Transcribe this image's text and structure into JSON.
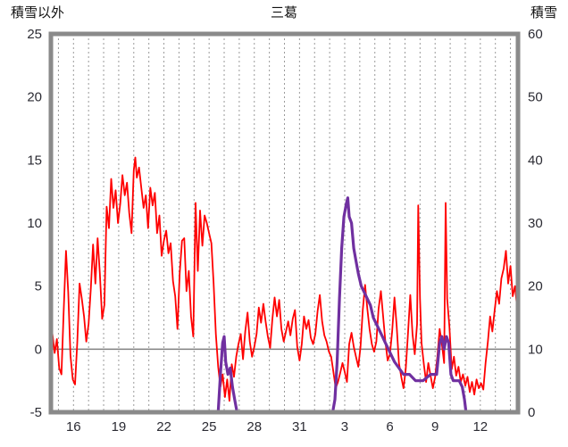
{
  "chart_data": {
    "type": "line",
    "title": "三葛",
    "ylabel_left": "積雪以外",
    "ylabel_right": "積雪",
    "x_domain": [
      14.5,
      45.5
    ],
    "x_ticks": [
      {
        "pos": 16,
        "label": "16"
      },
      {
        "pos": 19,
        "label": "19"
      },
      {
        "pos": 22,
        "label": "22"
      },
      {
        "pos": 25,
        "label": "25"
      },
      {
        "pos": 28,
        "label": "28"
      },
      {
        "pos": 31,
        "label": "31"
      },
      {
        "pos": 34,
        "label": "3"
      },
      {
        "pos": 37,
        "label": "6"
      },
      {
        "pos": 40,
        "label": "9"
      },
      {
        "pos": 43,
        "label": "12"
      }
    ],
    "grid": {
      "vertical_every_day": true,
      "horizontal": false
    },
    "left_axis": {
      "min": -5,
      "max": 25,
      "ticks": [
        25,
        20,
        15,
        10,
        5,
        0,
        -5
      ]
    },
    "right_axis": {
      "min": 0,
      "max": 60,
      "ticks": [
        60,
        50,
        40,
        30,
        20,
        10,
        0
      ]
    },
    "zero_line": 0,
    "colors": {
      "frame": "#8a8a8a",
      "grid": "#9a9a9a",
      "zero_line": "#808080",
      "temperature": "#ff0000",
      "snow": "#7030a0",
      "plot_background": "#ffffff"
    },
    "series": [
      {
        "name": "積雪以外",
        "data_name": "temperature-line",
        "axis": "left",
        "color": "#ff0000",
        "width": 1.8,
        "points": [
          [
            14.6,
            1.2
          ],
          [
            14.75,
            -0.3
          ],
          [
            14.9,
            0.8
          ],
          [
            15.05,
            -1.5
          ],
          [
            15.2,
            -2.0
          ],
          [
            15.35,
            3.0
          ],
          [
            15.5,
            7.8
          ],
          [
            15.65,
            4.5
          ],
          [
            15.8,
            -0.5
          ],
          [
            15.95,
            -2.4
          ],
          [
            16.1,
            -2.8
          ],
          [
            16.25,
            0.5
          ],
          [
            16.4,
            5.2
          ],
          [
            16.55,
            4.0
          ],
          [
            16.7,
            2.6
          ],
          [
            16.85,
            0.6
          ],
          [
            17.0,
            2.0
          ],
          [
            17.15,
            4.8
          ],
          [
            17.3,
            8.3
          ],
          [
            17.45,
            5.2
          ],
          [
            17.6,
            8.8
          ],
          [
            17.75,
            6.0
          ],
          [
            17.9,
            2.4
          ],
          [
            18.05,
            3.5
          ],
          [
            18.2,
            11.3
          ],
          [
            18.35,
            9.6
          ],
          [
            18.5,
            13.5
          ],
          [
            18.65,
            11.2
          ],
          [
            18.8,
            12.6
          ],
          [
            18.95,
            10.0
          ],
          [
            19.1,
            11.5
          ],
          [
            19.25,
            13.8
          ],
          [
            19.4,
            12.2
          ],
          [
            19.55,
            13.2
          ],
          [
            19.7,
            10.8
          ],
          [
            19.85,
            9.2
          ],
          [
            20.0,
            14.2
          ],
          [
            20.1,
            15.2
          ],
          [
            20.2,
            13.6
          ],
          [
            20.35,
            14.4
          ],
          [
            20.5,
            12.8
          ],
          [
            20.65,
            11.2
          ],
          [
            20.8,
            12.2
          ],
          [
            20.95,
            9.6
          ],
          [
            21.1,
            12.8
          ],
          [
            21.25,
            11.4
          ],
          [
            21.4,
            12.4
          ],
          [
            21.55,
            9.2
          ],
          [
            21.7,
            10.6
          ],
          [
            21.85,
            7.4
          ],
          [
            22.0,
            8.6
          ],
          [
            22.15,
            9.4
          ],
          [
            22.3,
            7.6
          ],
          [
            22.45,
            8.4
          ],
          [
            22.6,
            5.4
          ],
          [
            22.75,
            4.2
          ],
          [
            22.9,
            1.6
          ],
          [
            23.05,
            6.0
          ],
          [
            23.2,
            8.6
          ],
          [
            23.35,
            8.8
          ],
          [
            23.5,
            4.6
          ],
          [
            23.65,
            6.2
          ],
          [
            23.8,
            2.6
          ],
          [
            23.95,
            1.0
          ],
          [
            24.1,
            11.6
          ],
          [
            24.25,
            6.2
          ],
          [
            24.4,
            11.0
          ],
          [
            24.55,
            8.2
          ],
          [
            24.7,
            10.6
          ],
          [
            24.85,
            10.0
          ],
          [
            25.0,
            9.2
          ],
          [
            25.15,
            8.4
          ],
          [
            25.3,
            5.2
          ],
          [
            25.45,
            1.2
          ],
          [
            25.6,
            -1.4
          ],
          [
            25.75,
            -3.0
          ],
          [
            25.9,
            -2.0
          ],
          [
            26.05,
            -3.8
          ],
          [
            26.2,
            -2.4
          ],
          [
            26.35,
            -4.1
          ],
          [
            26.5,
            -1.2
          ],
          [
            26.65,
            -2.2
          ],
          [
            26.8,
            -0.6
          ],
          [
            26.95,
            0.4
          ],
          [
            27.1,
            1.2
          ],
          [
            27.25,
            -0.8
          ],
          [
            27.4,
            1.4
          ],
          [
            27.55,
            2.9
          ],
          [
            27.7,
            0.6
          ],
          [
            27.85,
            -0.6
          ],
          [
            28.0,
            0.2
          ],
          [
            28.15,
            1.2
          ],
          [
            28.3,
            3.3
          ],
          [
            28.45,
            2.1
          ],
          [
            28.6,
            3.6
          ],
          [
            28.75,
            2.2
          ],
          [
            28.9,
            1.0
          ],
          [
            29.05,
            0.1
          ],
          [
            29.2,
            2.4
          ],
          [
            29.35,
            4.1
          ],
          [
            29.5,
            2.6
          ],
          [
            29.65,
            3.9
          ],
          [
            29.8,
            1.6
          ],
          [
            29.95,
            0.6
          ],
          [
            30.1,
            1.4
          ],
          [
            30.25,
            2.2
          ],
          [
            30.4,
            1.1
          ],
          [
            30.55,
            2.4
          ],
          [
            30.7,
            3.1
          ],
          [
            30.85,
            0.2
          ],
          [
            31.0,
            -0.9
          ],
          [
            31.15,
            0.4
          ],
          [
            31.3,
            2.6
          ],
          [
            31.45,
            1.6
          ],
          [
            31.6,
            2.3
          ],
          [
            31.75,
            0.9
          ],
          [
            31.9,
            0.4
          ],
          [
            32.05,
            1.2
          ],
          [
            32.2,
            3.0
          ],
          [
            32.35,
            4.3
          ],
          [
            32.5,
            2.2
          ],
          [
            32.65,
            1.1
          ],
          [
            32.8,
            0.6
          ],
          [
            32.95,
            -0.2
          ],
          [
            33.1,
            -0.6
          ],
          [
            33.25,
            -1.8
          ],
          [
            33.4,
            -3.1
          ],
          [
            33.55,
            -2.6
          ],
          [
            33.7,
            -1.9
          ],
          [
            33.85,
            -1.1
          ],
          [
            34.0,
            -1.8
          ],
          [
            34.15,
            -2.6
          ],
          [
            34.3,
            0.4
          ],
          [
            34.45,
            1.3
          ],
          [
            34.6,
            0.2
          ],
          [
            34.75,
            -0.6
          ],
          [
            34.9,
            -1.4
          ],
          [
            35.05,
            0.2
          ],
          [
            35.2,
            3.1
          ],
          [
            35.35,
            5.1
          ],
          [
            35.5,
            3.2
          ],
          [
            35.65,
            1.6
          ],
          [
            35.8,
            0.4
          ],
          [
            35.95,
            -0.2
          ],
          [
            36.1,
            0.6
          ],
          [
            36.25,
            3.2
          ],
          [
            36.4,
            4.6
          ],
          [
            36.55,
            2.6
          ],
          [
            36.7,
            0.6
          ],
          [
            36.85,
            -0.9
          ],
          [
            37.0,
            -0.4
          ],
          [
            37.15,
            1.4
          ],
          [
            37.3,
            4.1
          ],
          [
            37.45,
            1.8
          ],
          [
            37.6,
            -1.1
          ],
          [
            37.75,
            -2.2
          ],
          [
            37.9,
            -3.1
          ],
          [
            38.05,
            -1.6
          ],
          [
            38.2,
            1.2
          ],
          [
            38.35,
            4.3
          ],
          [
            38.5,
            1.2
          ],
          [
            38.65,
            -0.4
          ],
          [
            38.8,
            2.0
          ],
          [
            38.88,
            11.4
          ],
          [
            39.0,
            4.0
          ],
          [
            39.1,
            0.5
          ],
          [
            39.25,
            -1.2
          ],
          [
            39.4,
            -2.6
          ],
          [
            39.55,
            -1.1
          ],
          [
            39.7,
            -2.1
          ],
          [
            39.85,
            -3.1
          ],
          [
            40.0,
            -2.2
          ],
          [
            40.15,
            -0.6
          ],
          [
            40.3,
            1.6
          ],
          [
            40.45,
            0.4
          ],
          [
            40.6,
            -1.1
          ],
          [
            40.7,
            11.6
          ],
          [
            40.8,
            4.0
          ],
          [
            40.95,
            1.8
          ],
          [
            41.1,
            -1.6
          ],
          [
            41.25,
            -0.6
          ],
          [
            41.4,
            -2.1
          ],
          [
            41.55,
            -1.4
          ],
          [
            41.7,
            -2.6
          ],
          [
            41.85,
            -2.0
          ],
          [
            42.0,
            -2.9
          ],
          [
            42.15,
            -2.2
          ],
          [
            42.3,
            -3.4
          ],
          [
            42.45,
            -2.6
          ],
          [
            42.6,
            -3.6
          ],
          [
            42.75,
            -2.4
          ],
          [
            42.9,
            -3.1
          ],
          [
            43.05,
            -2.7
          ],
          [
            43.2,
            -3.2
          ],
          [
            43.35,
            -1.1
          ],
          [
            43.5,
            0.6
          ],
          [
            43.65,
            2.6
          ],
          [
            43.8,
            1.4
          ],
          [
            43.95,
            3.1
          ],
          [
            44.1,
            4.6
          ],
          [
            44.25,
            3.6
          ],
          [
            44.4,
            5.6
          ],
          [
            44.55,
            6.4
          ],
          [
            44.7,
            7.8
          ],
          [
            44.85,
            5.2
          ],
          [
            45.0,
            6.6
          ],
          [
            45.15,
            4.2
          ],
          [
            45.3,
            5.0
          ],
          [
            45.45,
            3.2
          ]
        ]
      },
      {
        "name": "積雪",
        "data_name": "snow-depth-line",
        "axis": "right",
        "color": "#7030a0",
        "width": 3.2,
        "points": [
          [
            14.6,
            0
          ],
          [
            25.6,
            0
          ],
          [
            25.75,
            6
          ],
          [
            25.9,
            11
          ],
          [
            26.0,
            12
          ],
          [
            26.1,
            8
          ],
          [
            26.25,
            6
          ],
          [
            26.4,
            7
          ],
          [
            26.55,
            4
          ],
          [
            26.7,
            2
          ],
          [
            26.85,
            0
          ],
          [
            33.2,
            0
          ],
          [
            33.35,
            2
          ],
          [
            33.5,
            8
          ],
          [
            33.65,
            18
          ],
          [
            33.8,
            26
          ],
          [
            33.95,
            31
          ],
          [
            34.1,
            33
          ],
          [
            34.2,
            34
          ],
          [
            34.3,
            31
          ],
          [
            34.45,
            30
          ],
          [
            34.6,
            26
          ],
          [
            34.75,
            24
          ],
          [
            34.9,
            22
          ],
          [
            35.1,
            20
          ],
          [
            35.3,
            19
          ],
          [
            35.5,
            18
          ],
          [
            35.7,
            17
          ],
          [
            35.9,
            15
          ],
          [
            36.1,
            14
          ],
          [
            36.3,
            13
          ],
          [
            36.5,
            12
          ],
          [
            36.7,
            11
          ],
          [
            36.9,
            10
          ],
          [
            37.1,
            9
          ],
          [
            37.3,
            8
          ],
          [
            37.6,
            7
          ],
          [
            37.9,
            6
          ],
          [
            38.3,
            6
          ],
          [
            38.7,
            5
          ],
          [
            39.2,
            5
          ],
          [
            39.7,
            6
          ],
          [
            40.1,
            6
          ],
          [
            40.3,
            11
          ],
          [
            40.45,
            12
          ],
          [
            40.6,
            10
          ],
          [
            40.75,
            12
          ],
          [
            40.9,
            11
          ],
          [
            41.05,
            6
          ],
          [
            41.2,
            5
          ],
          [
            41.6,
            5
          ],
          [
            41.8,
            4
          ],
          [
            41.95,
            2
          ],
          [
            42.05,
            0
          ],
          [
            45.5,
            0
          ]
        ]
      }
    ]
  }
}
